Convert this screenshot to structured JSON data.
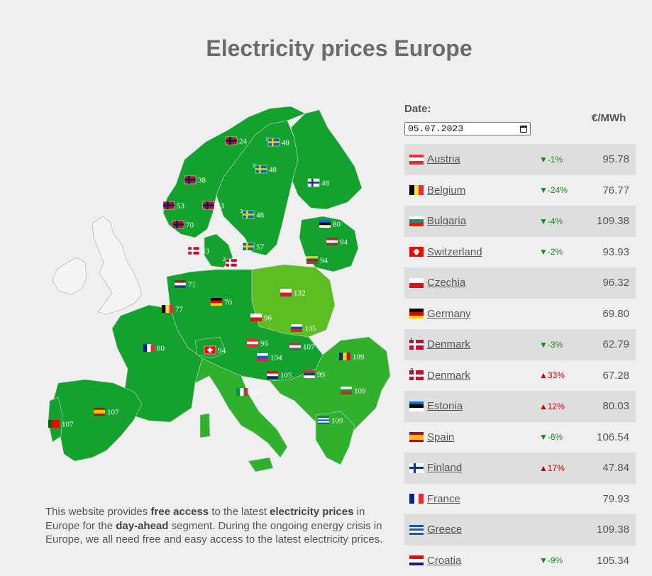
{
  "page": {
    "title": "Electricity prices Europe"
  },
  "controls": {
    "date_label": "Date:",
    "date_value": "05.07.2023",
    "unit_label": "€/MWh"
  },
  "intro": {
    "p1": "This website provides ",
    "b1": "free access",
    "p2": " to the latest ",
    "b2": "electricity prices",
    "p3": " in Europe for the ",
    "b3": "day-ahead",
    "p4": " segment. During the ongoing energy crisis in Europe, we all need free and easy access to the latest electricity prices."
  },
  "colors": {
    "map_dark": "#13a22e",
    "map_mid": "#2fb12d",
    "map_light": "#5dbe22",
    "map_outline": "#cccccc",
    "up": "#d00000",
    "down": "#1a8a1a"
  },
  "map_labels": [
    {
      "country": "Norway",
      "value": "24"
    },
    {
      "country": "Sweden 1",
      "sup": "1",
      "value": "48"
    },
    {
      "country": "Norway",
      "value": "38"
    },
    {
      "country": "Sweden 2",
      "sup": "2",
      "value": "48"
    },
    {
      "country": "Finland",
      "value": "48"
    },
    {
      "country": "Norway",
      "value": "53"
    },
    {
      "country": "Norway",
      "value": "53"
    },
    {
      "country": "Sweden 3",
      "sup": "3",
      "value": "48"
    },
    {
      "country": "Norway",
      "value": "70"
    },
    {
      "country": "Estonia",
      "value": "80"
    },
    {
      "country": "Denmark 1",
      "sup": "1",
      "value": "63"
    },
    {
      "country": "Sweden 4",
      "sup": "4",
      "value": "57"
    },
    {
      "country": "Latvia",
      "value": "94"
    },
    {
      "country": "Denmark 2",
      "sup": "2",
      "value": "67"
    },
    {
      "country": "Lithuania",
      "value": "94"
    },
    {
      "country": "Netherlands",
      "value": "71"
    },
    {
      "country": "Poland",
      "value": "132"
    },
    {
      "country": "Belgium",
      "value": "77"
    },
    {
      "country": "Germany",
      "value": "70"
    },
    {
      "country": "Czechia",
      "value": "96"
    },
    {
      "country": "Slovakia",
      "value": "105"
    },
    {
      "country": "France",
      "value": "80"
    },
    {
      "country": "Switzerland",
      "value": "94"
    },
    {
      "country": "Austria",
      "value": "96"
    },
    {
      "country": "Hungary",
      "value": "107"
    },
    {
      "country": "Slovenia",
      "value": "104"
    },
    {
      "country": "Romania",
      "value": "109"
    },
    {
      "country": "Croatia",
      "value": "105"
    },
    {
      "country": "Serbia",
      "value": "99"
    },
    {
      "country": "Italy",
      "value": "116"
    },
    {
      "country": "Bulgaria",
      "value": "109"
    },
    {
      "country": "Spain",
      "value": "107"
    },
    {
      "country": "Portugal",
      "value": "107"
    },
    {
      "country": "Greece",
      "value": "109"
    }
  ],
  "prices": [
    {
      "country": "Austria",
      "sup": "",
      "change": "▼-1%",
      "dir": "down",
      "price": "95.78"
    },
    {
      "country": "Belgium",
      "sup": "",
      "change": "▼-24%",
      "dir": "down",
      "price": "76.77"
    },
    {
      "country": "Bulgaria",
      "sup": "",
      "change": "▼-4%",
      "dir": "down",
      "price": "109.38"
    },
    {
      "country": "Switzerland",
      "sup": "",
      "change": "▼-2%",
      "dir": "down",
      "price": "93.93"
    },
    {
      "country": "Czechia",
      "sup": "",
      "change": "",
      "dir": "",
      "price": "96.32"
    },
    {
      "country": "Germany",
      "sup": "",
      "change": "",
      "dir": "",
      "price": "69.80"
    },
    {
      "country": "Denmark",
      "sup": "1",
      "change": "▼-3%",
      "dir": "down",
      "price": "62.79"
    },
    {
      "country": "Denmark",
      "sup": "2",
      "change": "▲33%",
      "dir": "up",
      "price": "67.28"
    },
    {
      "country": "Estonia",
      "sup": "",
      "change": "▲12%",
      "dir": "up",
      "price": "80.03"
    },
    {
      "country": "Spain",
      "sup": "",
      "change": "▼-6%",
      "dir": "down",
      "price": "106.54"
    },
    {
      "country": "Finland",
      "sup": "",
      "change": "▲17%",
      "dir": "up",
      "price": "47.84"
    },
    {
      "country": "France",
      "sup": "",
      "change": "",
      "dir": "",
      "price": "79.93"
    },
    {
      "country": "Greece",
      "sup": "",
      "change": "",
      "dir": "",
      "price": "109.38"
    },
    {
      "country": "Croatia",
      "sup": "",
      "change": "▼-9%",
      "dir": "down",
      "price": "105.34"
    }
  ]
}
